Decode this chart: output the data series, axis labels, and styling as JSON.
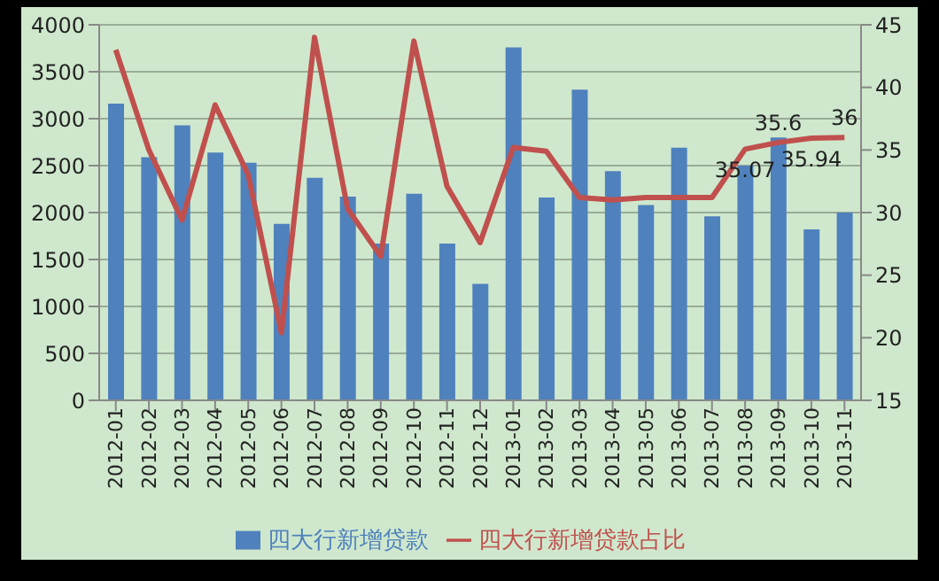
{
  "chart_data": {
    "type": "bar",
    "categories": [
      "2012-01",
      "2012-02",
      "2012-03",
      "2012-04",
      "2012-05",
      "2012-06",
      "2012-07",
      "2012-08",
      "2012-09",
      "2012-10",
      "2012-11",
      "2012-12",
      "2013-01",
      "2013-02",
      "2013-03",
      "2013-04",
      "2013-05",
      "2013-06",
      "2013-07",
      "2013-08",
      "2013-09",
      "2013-10",
      "2013-11"
    ],
    "series": [
      {
        "name": "四大行新增贷款",
        "color": "#4f81bd",
        "values": [
          3160,
          2590,
          2930,
          2640,
          2530,
          1880,
          2370,
          2170,
          1670,
          2200,
          1670,
          1240,
          3760,
          2160,
          3310,
          2440,
          2080,
          2690,
          1960,
          2500,
          2800,
          1820,
          2000
        ]
      },
      {
        "name": "四大行新增贷款占比",
        "type": "line",
        "axis": "y2",
        "color": "#c0504d",
        "values": [
          43.0,
          35.0,
          29.4,
          38.6,
          33.0,
          20.4,
          44.0,
          30.3,
          26.5,
          43.7,
          32.1,
          27.6,
          35.2,
          34.9,
          31.2,
          31.0,
          31.2,
          31.2,
          31.2,
          35.07,
          35.6,
          35.94,
          36
        ],
        "value_labels": [
          null,
          null,
          null,
          null,
          null,
          null,
          null,
          null,
          null,
          null,
          null,
          null,
          null,
          null,
          null,
          null,
          null,
          null,
          null,
          "35.07",
          "35.6",
          "35.94",
          "36"
        ]
      }
    ],
    "ylim": [
      0,
      4000
    ],
    "yticks": [
      0,
      500,
      1000,
      1500,
      2000,
      2500,
      3000,
      3500,
      4000
    ],
    "y2lim": [
      15,
      45
    ],
    "y2ticks": [
      15,
      20,
      25,
      30,
      35,
      40,
      45
    ],
    "grid": "y",
    "legend": "bottom",
    "marker": "none"
  }
}
